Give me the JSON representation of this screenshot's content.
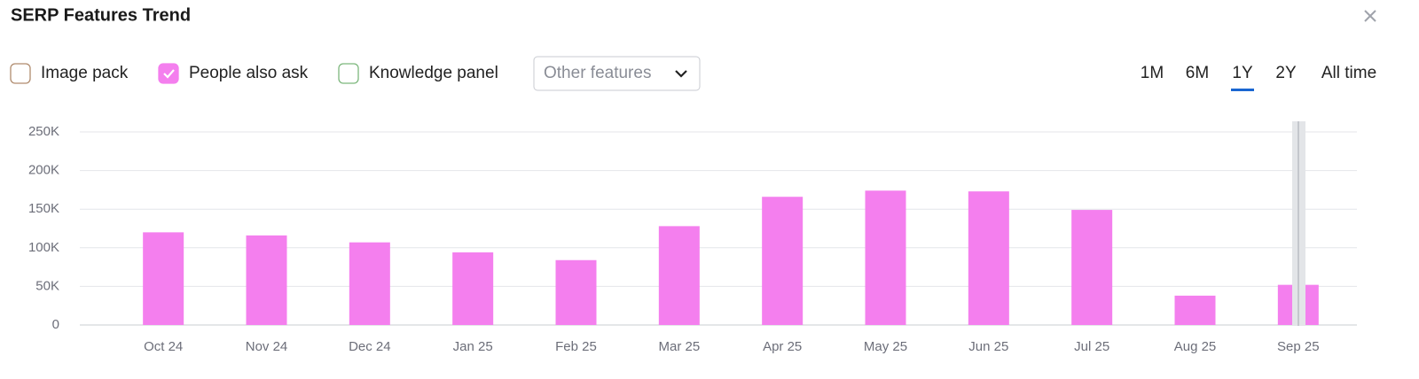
{
  "chart_data": {
    "type": "bar",
    "title": "SERP Features Trend",
    "series": [
      {
        "name": "Image pack",
        "color": "#b08b6e",
        "checked": false
      },
      {
        "name": "People also ask",
        "color": "#f47fee",
        "checked": true,
        "values": [
          120000,
          116000,
          107000,
          94000,
          84000,
          128000,
          166000,
          174000,
          173000,
          149000,
          38000,
          52000
        ]
      },
      {
        "name": "Knowledge panel",
        "color": "#7cb77c",
        "checked": false
      }
    ],
    "categories": [
      "Oct 24",
      "Nov 24",
      "Dec 24",
      "Jan 25",
      "Feb 25",
      "Mar 25",
      "Apr 25",
      "May 25",
      "Jun 25",
      "Jul 25",
      "Aug 25",
      "Sep 25"
    ],
    "ylim": [
      0,
      250000
    ],
    "yticks": [
      0,
      {
        "value": 50000,
        "label": "50K"
      },
      {
        "value": 100000,
        "label": "100K"
      },
      {
        "value": 150000,
        "label": "150K"
      },
      {
        "value": 200000,
        "label": "200K"
      },
      {
        "value": 250000,
        "label": "250K"
      }
    ],
    "grid": true
  },
  "dropdown": "Other features",
  "ranges": [
    "1M",
    "6M",
    "1Y",
    "2Y",
    "All time"
  ],
  "selected_range": 2
}
